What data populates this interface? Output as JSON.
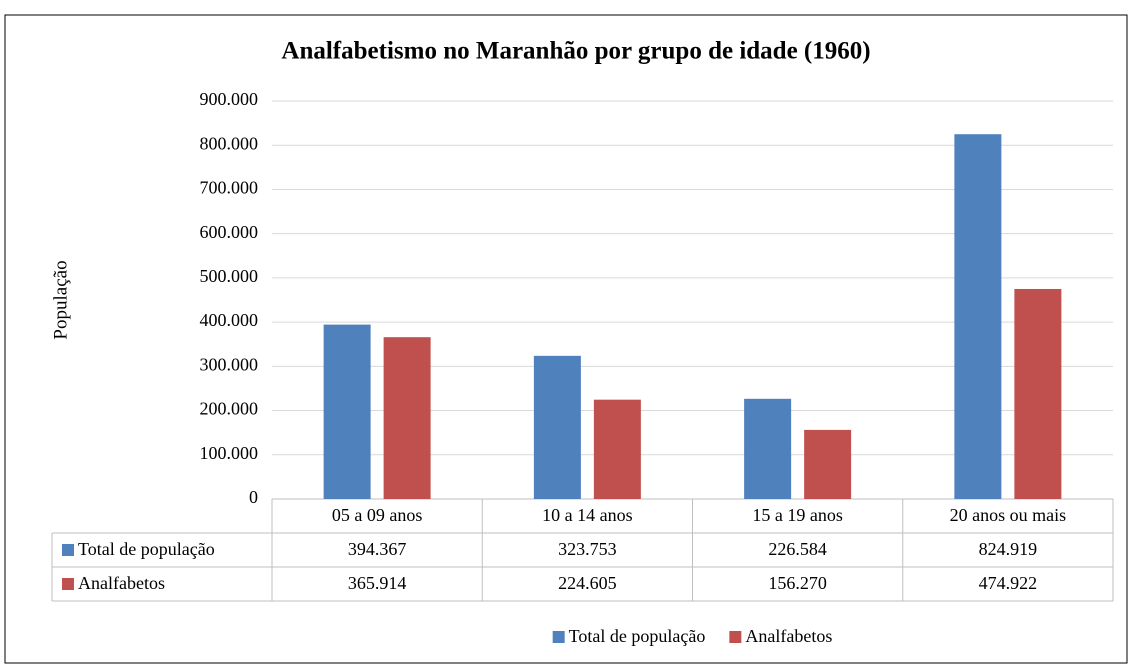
{
  "chart_data": {
    "type": "bar",
    "title": "Analfabetismo no Maranhão por grupo de idade (1960)",
    "y_label": "População",
    "categories": [
      "05 a 09 anos",
      "10 a 14 anos",
      "15 a 19 anos",
      "20 anos ou mais"
    ],
    "series": [
      {
        "name": "Total de população",
        "color": "#4f81bd",
        "values": [
          394367,
          323753,
          226584,
          824919
        ],
        "value_labels": [
          "394.367",
          "323.753",
          "226.584",
          "824.919"
        ]
      },
      {
        "name": "Analfabetos",
        "color": "#c0504d",
        "values": [
          365914,
          224605,
          156270,
          474922
        ],
        "value_labels": [
          "365.914",
          "224.605",
          "156.270",
          "474.922"
        ]
      }
    ],
    "ylim": [
      0,
      900000
    ],
    "yticks": [
      0,
      {
        "value": 100000,
        "label": "100.000"
      },
      {
        "value": 200000,
        "label": "200.000"
      },
      {
        "value": 300000,
        "label": "300.000"
      },
      {
        "value": 400000,
        "label": "400.000"
      },
      {
        "value": 500000,
        "label": "500.000"
      },
      {
        "value": 600000,
        "label": "600.000"
      },
      {
        "value": 700000,
        "label": "700.000"
      },
      {
        "value": 800000,
        "label": "800.000"
      },
      {
        "value": 900000,
        "label": "900.000"
      }
    ],
    "grid": true,
    "legend": "bottom"
  }
}
